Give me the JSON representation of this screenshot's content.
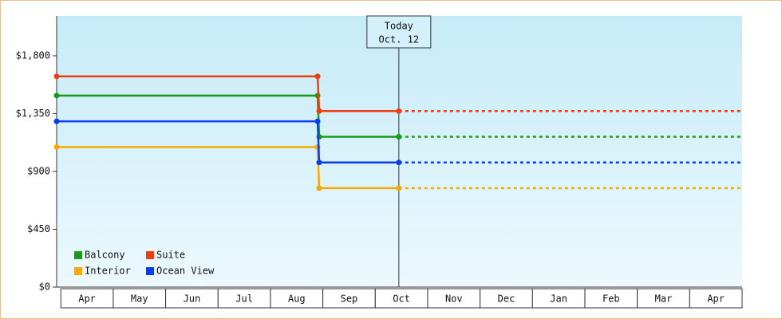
{
  "chart_data": {
    "type": "step-line",
    "annotation": {
      "text": [
        "Today",
        "Oct. 12"
      ],
      "x": 6.45
    },
    "xlim": [
      -0.08,
      13
    ],
    "xticks": [
      {
        "value": 0.5,
        "label": "Apr"
      },
      {
        "value": 1.5,
        "label": "May"
      },
      {
        "value": 2.5,
        "label": "Jun"
      },
      {
        "value": 3.5,
        "label": "Jul"
      },
      {
        "value": 4.5,
        "label": "Aug"
      },
      {
        "value": 5.5,
        "label": "Sep"
      },
      {
        "value": 6.5,
        "label": "Oct"
      },
      {
        "value": 7.5,
        "label": "Nov"
      },
      {
        "value": 8.5,
        "label": "Dec"
      },
      {
        "value": 9.5,
        "label": "Jan"
      },
      {
        "value": 10.5,
        "label": "Feb"
      },
      {
        "value": 11.5,
        "label": "Mar"
      },
      {
        "value": 12.5,
        "label": "Apr"
      }
    ],
    "ylim": [
      0,
      2110
    ],
    "yticks": [
      {
        "value": 0,
        "label": "$0"
      },
      {
        "value": 450,
        "label": "$450"
      },
      {
        "value": 900,
        "label": "$900"
      },
      {
        "value": 1350,
        "label": "$1,350"
      },
      {
        "value": 1800,
        "label": "$1,800"
      }
    ],
    "legend": "bottom-left",
    "series": [
      {
        "name": "Balcony",
        "color": "#1a9a1a",
        "x": [
          -0.08,
          4.9,
          4.93,
          6.45,
          13
        ],
        "values": [
          1490,
          1490,
          1170,
          1170,
          1170
        ]
      },
      {
        "name": "Suite",
        "color": "#f03c0f",
        "x": [
          -0.08,
          4.9,
          4.93,
          6.45,
          13
        ],
        "values": [
          1640,
          1640,
          1370,
          1370,
          1370
        ]
      },
      {
        "name": "Interior",
        "color": "#f8a800",
        "x": [
          -0.08,
          4.9,
          4.93,
          6.45,
          13
        ],
        "values": [
          1090,
          1090,
          770,
          770,
          770
        ]
      },
      {
        "name": "Ocean View",
        "color": "#0a3cf0",
        "x": [
          -0.08,
          4.9,
          4.93,
          6.45,
          13
        ],
        "values": [
          1290,
          1290,
          970,
          970,
          970
        ]
      }
    ]
  }
}
